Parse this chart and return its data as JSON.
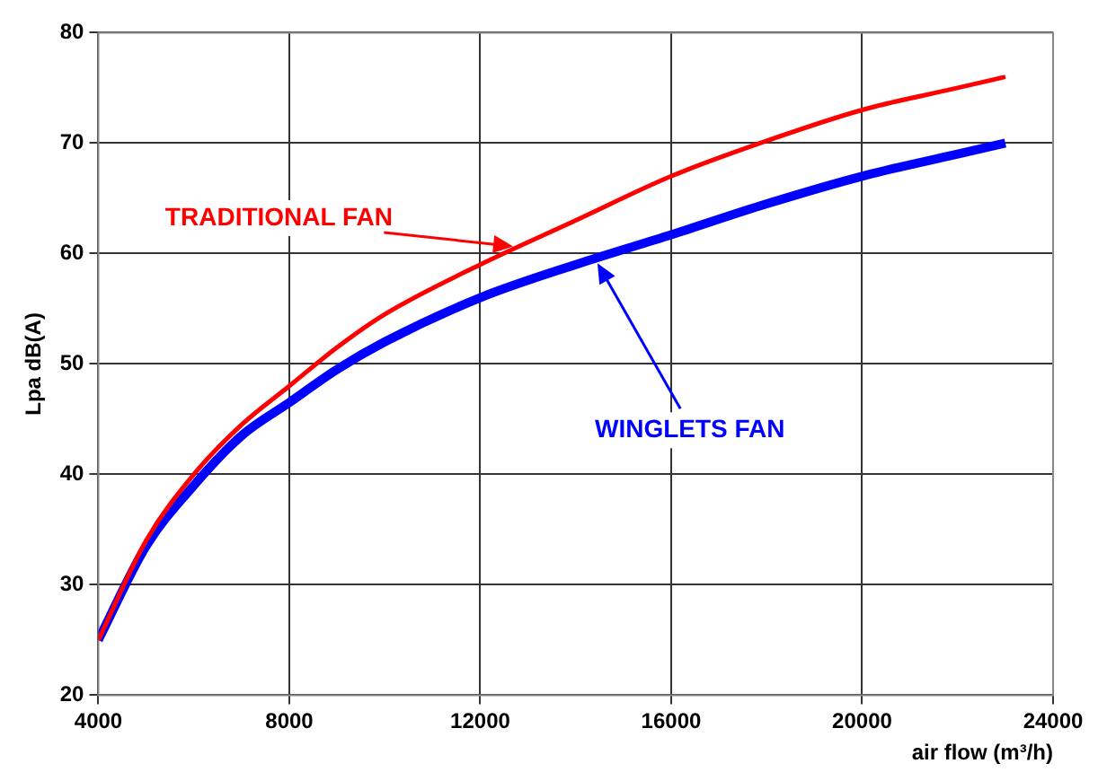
{
  "chart_data": {
    "type": "line",
    "xlabel": "air flow (m³/h)",
    "ylabel": "Lpa dB(A)",
    "x": [
      4000,
      5000,
      6000,
      7000,
      8000,
      9000,
      10000,
      12000,
      14000,
      16000,
      18000,
      20000,
      22000,
      23000
    ],
    "series": [
      {
        "name": "TRADITIONAL FAN",
        "color": "#ff0000",
        "values": [
          25,
          34,
          40,
          44.5,
          48,
          51.5,
          54.5,
          59,
          63,
          67,
          70.2,
          73,
          75,
          76
        ]
      },
      {
        "name": "WINGLETS FAN",
        "color": "#0000ff",
        "values": [
          25,
          33.5,
          39,
          43.5,
          46.5,
          49.5,
          52,
          56,
          59,
          61.7,
          64.5,
          67,
          69,
          70
        ]
      }
    ],
    "xlim": [
      4000,
      24000
    ],
    "xticks": [
      4000,
      8000,
      12000,
      16000,
      20000,
      24000
    ],
    "ylim": [
      20,
      80
    ],
    "yticks": [
      20,
      30,
      40,
      50,
      60,
      70,
      80
    ],
    "grid": true,
    "legend": false,
    "marker": "none",
    "line_style": "solid"
  }
}
